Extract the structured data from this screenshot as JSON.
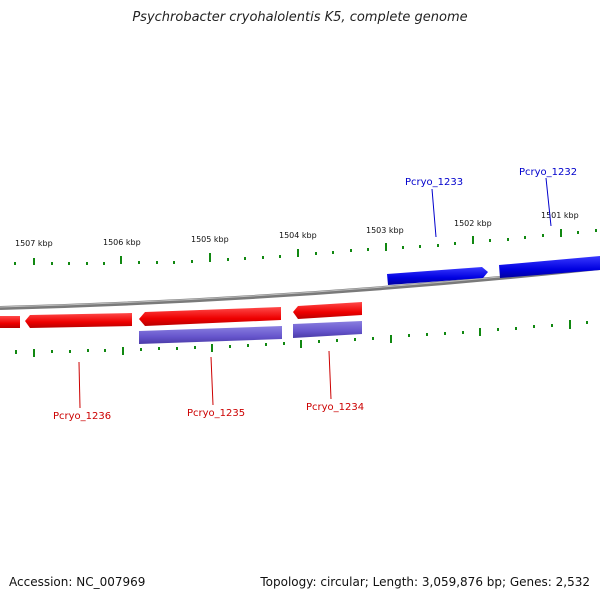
{
  "title": "Psychrobacter cryohalolentis K5, complete genome",
  "footer": {
    "accession": "Accession: NC_007969",
    "summary": "Topology: circular; Length: 3,059,876 bp; Genes: 2,532"
  },
  "colors": {
    "forward_gene": "#0000ee",
    "reverse_gene": "#ee0000",
    "reverse_cds": "#6655cc",
    "backbone": "#888888",
    "ticks": "#118811"
  },
  "scale_labels": [
    "1501 kbp",
    "1502 kbp",
    "1503 kbp",
    "1504 kbp",
    "1505 kbp",
    "1506 kbp",
    "1507 kbp"
  ],
  "genes": {
    "forward": [
      "Pcryo_1233",
      "Pcryo_1232"
    ],
    "reverse": [
      "Pcryo_1234",
      "Pcryo_1235",
      "Pcryo_1236"
    ]
  }
}
